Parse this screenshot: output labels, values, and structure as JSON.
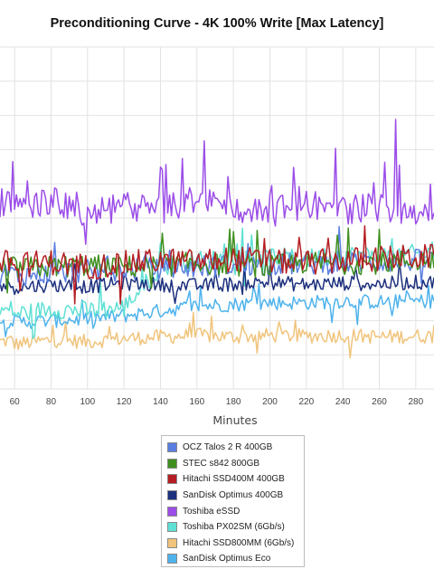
{
  "title": "Preconditioning Curve - 4K 100% Write [Max Latency]",
  "chart_data": {
    "type": "line",
    "title": "Preconditioning Curve - 4K 100% Write [Max Latency]",
    "xlabel": "Minutes",
    "ylabel": "",
    "x_ticks": [
      60,
      80,
      100,
      120,
      140,
      160,
      180,
      200,
      220,
      240,
      260,
      280
    ],
    "xlim": [
      52,
      290
    ],
    "y_visible_tick_labels": [],
    "y_scale_note": "values approximate, in vertical units 0-420 (axis labels not visible)",
    "ylim": [
      0,
      420
    ],
    "grid": true,
    "legend_position": "bottom",
    "series": [
      {
        "name": "OCZ Talos 2 R 400GB",
        "color": "#5a7fe0",
        "baseline": 148,
        "noise": 14,
        "trend": 14,
        "values_sampled_every_20min": [
          140,
          142,
          145,
          147,
          148,
          150,
          152,
          153,
          154,
          155,
          156,
          158
        ]
      },
      {
        "name": "STEC s842 800GB",
        "color": "#3f8f1f",
        "baseline": 150,
        "noise": 14,
        "trend": 10,
        "values_sampled_every_20min": [
          148,
          150,
          152,
          150,
          151,
          155,
          152,
          150,
          156,
          154,
          155,
          158
        ]
      },
      {
        "name": "Hitachi SSD400M 400GB",
        "color": "#b51d22",
        "baseline": 155,
        "noise": 16,
        "trend": 10,
        "values_sampled_every_20min": [
          152,
          156,
          150,
          154,
          158,
          156,
          160,
          157,
          155,
          158,
          160,
          162
        ]
      },
      {
        "name": "SanDisk Optimus 400GB",
        "color": "#1c2f7e",
        "baseline": 128,
        "noise": 9,
        "trend": 4,
        "values_sampled_every_20min": [
          125,
          128,
          126,
          130,
          128,
          127,
          129,
          131,
          128,
          130,
          129,
          131
        ]
      },
      {
        "name": "Toshiba eSSD",
        "color": "#9b4de8",
        "baseline": 218,
        "noise": 18,
        "trend": 0,
        "values_sampled_every_20min": [
          220,
          232,
          212,
          225,
          218,
          235,
          222,
          216,
          228,
          220,
          224,
          218
        ]
      },
      {
        "name": "Toshiba PX02SM (6Gb/s)",
        "color": "#5fe0d4",
        "baseline": 95,
        "noise": 12,
        "trend": 75,
        "values_sampled_every_20min": [
          92,
          98,
          96,
          100,
          150,
          158,
          160,
          162,
          160,
          165,
          163,
          166
        ]
      },
      {
        "name": "Hitachi SSD800MM (6Gb/s)",
        "color": "#f0c47c",
        "baseline": 58,
        "noise": 9,
        "trend": 10,
        "values_sampled_every_20min": [
          55,
          60,
          58,
          62,
          64,
          66,
          64,
          66,
          65,
          66,
          64,
          65
        ]
      },
      {
        "name": "SanDisk Optimus Eco",
        "color": "#4fb3ec",
        "baseline": 85,
        "noise": 9,
        "trend": 28,
        "values_sampled_every_20min": [
          82,
          84,
          86,
          90,
          96,
          102,
          104,
          106,
          106,
          108,
          107,
          108
        ]
      }
    ]
  }
}
